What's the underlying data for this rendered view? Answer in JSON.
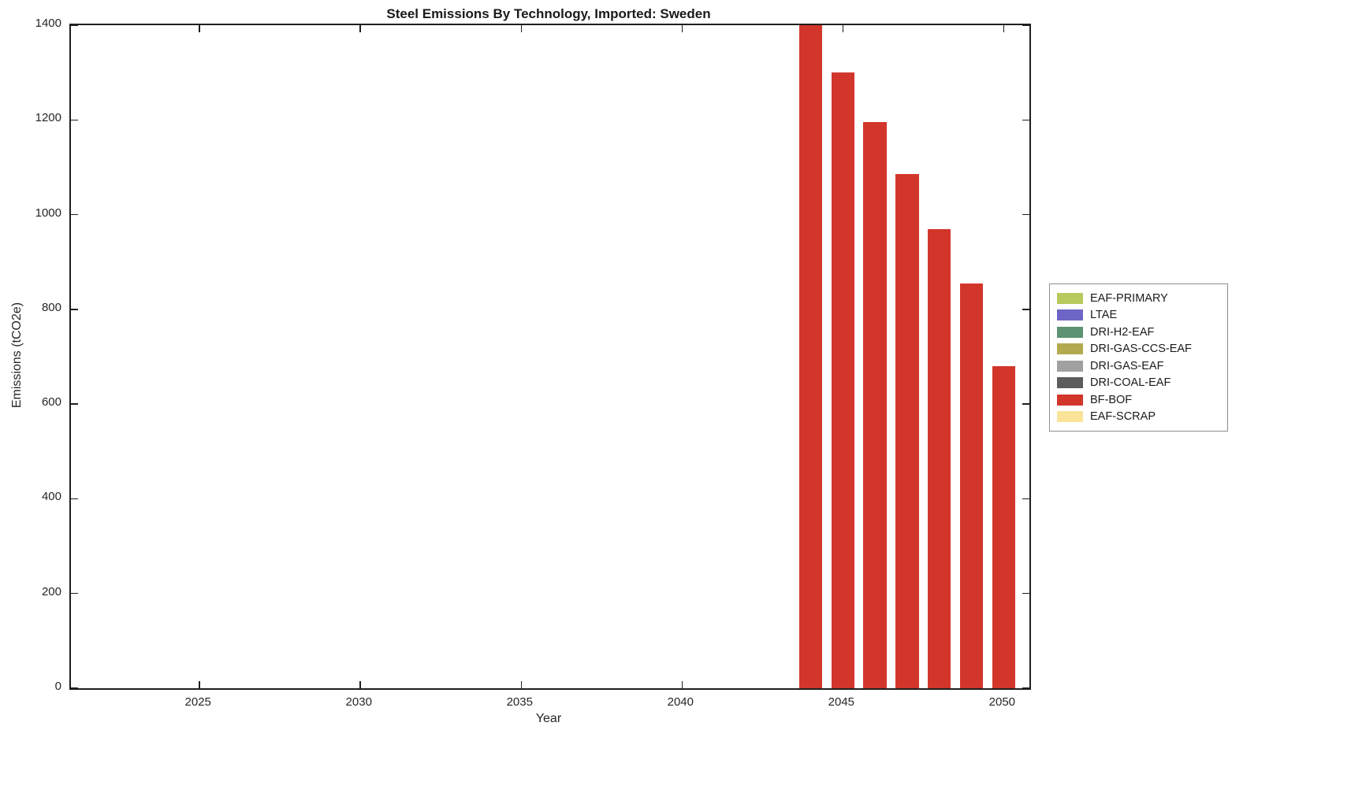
{
  "chart_data": {
    "type": "bar",
    "title": "Steel Emissions By Technology, Imported: Sweden",
    "xlabel": "Year",
    "ylabel": "Emissions (tCO2e)",
    "xlim": [
      2021.0,
      2050.8
    ],
    "ylim": [
      0,
      1400
    ],
    "x_ticks": [
      2025,
      2030,
      2035,
      2040,
      2045,
      2050
    ],
    "y_ticks": [
      0,
      200,
      400,
      600,
      800,
      1000,
      1200,
      1400
    ],
    "grid": false,
    "bar_width_years": 0.72,
    "series": [
      {
        "name": "BF-BOF",
        "color": "#d2362b",
        "x": [
          2044,
          2045,
          2046,
          2047,
          2048,
          2049,
          2050
        ],
        "values": [
          1405,
          1300,
          1195,
          1085,
          970,
          855,
          680
        ]
      }
    ],
    "legend": {
      "position": "right",
      "entries": [
        {
          "label": "EAF-PRIMARY",
          "color": "#b8c95e"
        },
        {
          "label": "LTAE",
          "color": "#6e66c6"
        },
        {
          "label": "DRI-H2-EAF",
          "color": "#5d9272"
        },
        {
          "label": "DRI-GAS-CCS-EAF",
          "color": "#b3aa4f"
        },
        {
          "label": "DRI-GAS-EAF",
          "color": "#a0a0a0"
        },
        {
          "label": "DRI-COAL-EAF",
          "color": "#5c5c5c"
        },
        {
          "label": "BF-BOF",
          "color": "#d2362b"
        },
        {
          "label": "EAF-SCRAP",
          "color": "#fbe49a"
        }
      ]
    }
  }
}
